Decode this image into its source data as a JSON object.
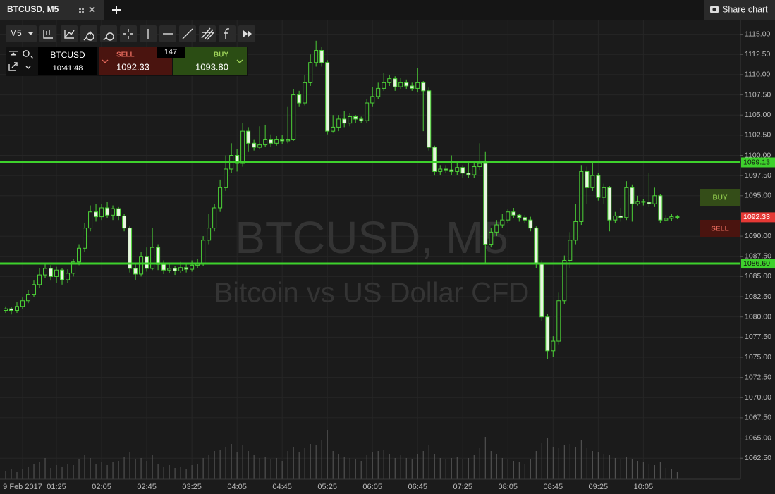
{
  "tab": {
    "title": "BTCUSD, M5",
    "share": "Share chart"
  },
  "toolbar": {
    "timeframe": "M5"
  },
  "ticker": {
    "symbol": "BTCUSD",
    "time": "10:41:48",
    "sell_label": "SELL",
    "sell": "1092.33",
    "spread": 147,
    "buy_label": "BUY",
    "buy": "1093.80"
  },
  "chart_data": {
    "type": "candlestick",
    "watermark_title": "BTCUSD, M5",
    "watermark_subtitle": "Bitcoin vs US Dollar CFD",
    "colors": {
      "up": "#1b1b1b",
      "down": "#e8f5e0",
      "wick": "#4cd137"
    },
    "xlim": [
      35,
      691
    ],
    "ylim": [
      1059.9,
      1116.8
    ],
    "grid": true,
    "xticks": [
      {
        "value": 55,
        "label": "9 Feb 2017"
      },
      {
        "value": 85,
        "label": "01:25"
      },
      {
        "value": 125,
        "label": "02:05"
      },
      {
        "value": 165,
        "label": "02:45"
      },
      {
        "value": 205,
        "label": "03:25"
      },
      {
        "value": 245,
        "label": "04:05"
      },
      {
        "value": 285,
        "label": "04:45"
      },
      {
        "value": 325,
        "label": "05:25"
      },
      {
        "value": 365,
        "label": "06:05"
      },
      {
        "value": 405,
        "label": "06:45"
      },
      {
        "value": 445,
        "label": "07:25"
      },
      {
        "value": 485,
        "label": "08:05"
      },
      {
        "value": 525,
        "label": "08:45"
      },
      {
        "value": 565,
        "label": "09:25"
      },
      {
        "value": 605,
        "label": "10:05"
      }
    ],
    "yticks": [
      {
        "value": 1115,
        "label": "1115.00"
      },
      {
        "value": 1112.5,
        "label": "1112.50"
      },
      {
        "value": 1110,
        "label": "1110.00"
      },
      {
        "value": 1107.5,
        "label": "1107.50"
      },
      {
        "value": 1105,
        "label": "1105.00"
      },
      {
        "value": 1102.5,
        "label": "1102.50"
      },
      {
        "value": 1100,
        "label": "1100.00"
      },
      {
        "value": 1097.5,
        "label": "1097.50"
      },
      {
        "value": 1095,
        "label": "1095.00"
      },
      {
        "value": 1092.5,
        "label": "1092.50"
      },
      {
        "value": 1090,
        "label": "1090.00"
      },
      {
        "value": 1087.5,
        "label": "1087.50"
      },
      {
        "value": 1085,
        "label": "1085.00"
      },
      {
        "value": 1082.5,
        "label": "1082.50"
      },
      {
        "value": 1080,
        "label": "1080.00"
      },
      {
        "value": 1077.5,
        "label": "1077.50"
      },
      {
        "value": 1075,
        "label": "1075.00"
      },
      {
        "value": 1072.5,
        "label": "1072.50"
      },
      {
        "value": 1070,
        "label": "1070.00"
      },
      {
        "value": 1067.5,
        "label": "1067.50"
      },
      {
        "value": 1065,
        "label": "1065.00"
      },
      {
        "value": 1062.5,
        "label": "1062.50"
      }
    ],
    "levels": [
      {
        "value": 1099.13,
        "label": "1099.13"
      },
      {
        "value": 1086.6,
        "label": "1086.60"
      }
    ],
    "level_color": "#3ed12c",
    "last": {
      "value": 1092.33,
      "label": "1092.33",
      "color": "#e53935"
    },
    "buttons": {
      "buy": "BUY",
      "sell": "SELL"
    },
    "x": [
      40,
      45,
      50,
      55,
      60,
      65,
      70,
      75,
      80,
      85,
      90,
      95,
      100,
      105,
      110,
      115,
      120,
      125,
      130,
      135,
      140,
      145,
      150,
      155,
      160,
      165,
      170,
      175,
      180,
      185,
      190,
      195,
      200,
      205,
      210,
      215,
      220,
      225,
      230,
      235,
      240,
      245,
      250,
      255,
      260,
      265,
      270,
      275,
      280,
      285,
      290,
      295,
      300,
      305,
      310,
      315,
      320,
      325,
      330,
      335,
      340,
      345,
      350,
      355,
      360,
      365,
      370,
      375,
      380,
      385,
      390,
      395,
      400,
      405,
      410,
      415,
      420,
      425,
      430,
      435,
      440,
      445,
      450,
      455,
      460,
      465,
      470,
      475,
      480,
      485,
      490,
      495,
      500,
      505,
      510,
      515,
      520,
      525,
      530,
      535,
      540,
      545,
      550,
      555,
      560,
      565,
      570,
      575,
      580,
      585,
      590,
      595,
      600,
      605,
      610,
      615,
      620,
      625,
      630,
      635
    ],
    "open": [
      1080.8,
      1081.0,
      1080.8,
      1081.3,
      1082.0,
      1082.8,
      1084.0,
      1085.2,
      1086.0,
      1085.0,
      1085.8,
      1084.6,
      1085.4,
      1086.8,
      1088.5,
      1091.0,
      1093.0,
      1092.4,
      1093.5,
      1092.6,
      1093.4,
      1092.5,
      1091.0,
      1086.0,
      1085.3,
      1087.5,
      1086.0,
      1088.6,
      1086.5,
      1085.8,
      1086.0,
      1085.7,
      1086.1,
      1085.9,
      1086.4,
      1086.6,
      1089.5,
      1091.0,
      1093.5,
      1096.0,
      1098.3,
      1100.0,
      1099.0,
      1103.0,
      1101.5,
      1101.0,
      1101.3,
      1102.0,
      1101.5,
      1102.0,
      1101.8,
      1102.0,
      1107.5,
      1106.5,
      1109.0,
      1111.5,
      1113.0,
      1111.5,
      1103.0,
      1103.5,
      1104.5,
      1104.0,
      1104.8,
      1104.5,
      1104.3,
      1106.5,
      1107.3,
      1108.3,
      1109.0,
      1109.5,
      1108.5,
      1109.0,
      1108.6,
      1108.3,
      1109.0,
      1108.0,
      1101.0,
      1098.0,
      1098.3,
      1098.2,
      1098.0,
      1098.5,
      1097.8,
      1097.6,
      1098.6,
      1099.0,
      1089.0,
      1090.5,
      1091.4,
      1092.0,
      1093.0,
      1092.6,
      1092.3,
      1092.0,
      1091.0,
      1086.6,
      1080.0,
      1075.8,
      1077.0,
      1082.0,
      1087.0,
      1089.5,
      1091.8,
      1098.0,
      1096.0,
      1097.5,
      1094.8,
      1096.0,
      1092.0,
      1092.5,
      1092.3,
      1096.0,
      1094.0,
      1094.3,
      1094.2,
      1094.0,
      1095.0,
      1092.0,
      1092.2,
      1092.4
    ],
    "high": [
      1081.3,
      1081.2,
      1081.8,
      1082.4,
      1083.3,
      1084.5,
      1086.0,
      1086.6,
      1086.4,
      1086.2,
      1086.0,
      1085.9,
      1087.2,
      1089.0,
      1091.6,
      1093.8,
      1094.0,
      1094.0,
      1094.2,
      1093.8,
      1093.6,
      1092.8,
      1091.2,
      1086.5,
      1088.0,
      1088.6,
      1091.0,
      1089.0,
      1087.0,
      1086.5,
      1086.3,
      1086.8,
      1086.5,
      1087.0,
      1087.2,
      1090.0,
      1092.8,
      1094.0,
      1097.0,
      1100.0,
      1101.5,
      1100.8,
      1104.0,
      1103.5,
      1102.0,
      1103.6,
      1103.8,
      1102.6,
      1102.4,
      1102.5,
      1106.0,
      1108.2,
      1108.0,
      1110.0,
      1112.5,
      1114.2,
      1113.4,
      1111.8,
      1105.0,
      1105.0,
      1105.5,
      1105.2,
      1105.0,
      1104.8,
      1107.0,
      1108.5,
      1109.0,
      1110.2,
      1110.0,
      1109.8,
      1109.6,
      1109.4,
      1109.0,
      1110.8,
      1109.2,
      1108.4,
      1101.2,
      1098.8,
      1098.8,
      1100.0,
      1099.0,
      1098.8,
      1099.0,
      1099.0,
      1101.5,
      1100.5,
      1091.0,
      1092.0,
      1092.8,
      1093.4,
      1093.5,
      1092.8,
      1092.6,
      1092.4,
      1091.2,
      1087.0,
      1080.4,
      1077.6,
      1083.0,
      1087.6,
      1090.5,
      1094.0,
      1098.8,
      1098.6,
      1099.2,
      1097.8,
      1096.5,
      1096.2,
      1093.0,
      1093.5,
      1096.8,
      1096.4,
      1095.0,
      1094.6,
      1097.8,
      1096.0,
      1095.2,
      1092.6,
      1092.8,
      1092.6
    ],
    "low": [
      1080.5,
      1080.3,
      1080.5,
      1081.0,
      1081.7,
      1082.5,
      1083.6,
      1084.8,
      1084.5,
      1084.2,
      1084.0,
      1084.2,
      1085.0,
      1086.4,
      1088.0,
      1090.6,
      1091.8,
      1092.0,
      1092.2,
      1092.0,
      1092.0,
      1090.6,
      1085.5,
      1084.6,
      1085.0,
      1085.6,
      1085.8,
      1085.8,
      1085.3,
      1085.4,
      1085.2,
      1085.4,
      1085.5,
      1085.6,
      1086.0,
      1086.3,
      1089.0,
      1090.6,
      1093.0,
      1095.6,
      1097.8,
      1098.0,
      1098.6,
      1100.5,
      1100.6,
      1100.8,
      1101.0,
      1101.0,
      1101.2,
      1101.4,
      1101.5,
      1101.8,
      1106.0,
      1106.2,
      1108.6,
      1111.0,
      1111.0,
      1102.6,
      1102.8,
      1103.0,
      1103.5,
      1103.6,
      1104.0,
      1104.0,
      1104.0,
      1106.0,
      1107.0,
      1108.0,
      1108.6,
      1108.0,
      1108.2,
      1108.2,
      1108.0,
      1107.8,
      1103.0,
      1100.6,
      1097.5,
      1097.6,
      1097.8,
      1097.6,
      1097.6,
      1097.2,
      1097.2,
      1097.2,
      1098.2,
      1086.6,
      1088.6,
      1090.0,
      1091.0,
      1091.6,
      1092.2,
      1091.8,
      1091.6,
      1090.6,
      1086.0,
      1079.5,
      1074.8,
      1075.0,
      1076.6,
      1081.6,
      1086.0,
      1089.0,
      1091.4,
      1094.0,
      1095.6,
      1094.4,
      1094.0,
      1090.6,
      1091.6,
      1091.8,
      1092.0,
      1091.8,
      1093.8,
      1093.8,
      1093.6,
      1093.6,
      1091.6,
      1091.8,
      1091.9,
      1092.1
    ],
    "close": [
      1081.0,
      1080.8,
      1081.3,
      1082.0,
      1082.8,
      1084.0,
      1085.2,
      1086.0,
      1085.0,
      1085.8,
      1084.6,
      1085.4,
      1086.8,
      1088.5,
      1091.0,
      1093.0,
      1092.4,
      1093.5,
      1092.6,
      1093.4,
      1092.5,
      1091.0,
      1086.0,
      1085.3,
      1087.5,
      1086.0,
      1088.6,
      1086.5,
      1085.8,
      1086.0,
      1085.7,
      1086.1,
      1085.9,
      1086.4,
      1086.6,
      1089.5,
      1091.0,
      1093.5,
      1096.0,
      1098.3,
      1100.0,
      1099.0,
      1103.0,
      1101.5,
      1101.0,
      1101.3,
      1102.0,
      1101.5,
      1102.0,
      1101.8,
      1102.0,
      1107.5,
      1106.5,
      1109.0,
      1111.5,
      1113.0,
      1111.5,
      1103.0,
      1103.5,
      1104.5,
      1104.0,
      1104.8,
      1104.5,
      1104.3,
      1106.5,
      1107.3,
      1108.3,
      1109.0,
      1109.5,
      1108.5,
      1109.0,
      1108.6,
      1108.3,
      1109.0,
      1108.0,
      1101.0,
      1098.0,
      1098.3,
      1098.2,
      1098.0,
      1098.5,
      1097.8,
      1097.6,
      1098.6,
      1099.0,
      1089.0,
      1090.5,
      1091.4,
      1092.0,
      1093.0,
      1092.6,
      1092.3,
      1092.0,
      1091.0,
      1086.6,
      1080.0,
      1075.8,
      1077.0,
      1082.0,
      1087.0,
      1089.5,
      1091.8,
      1098.0,
      1096.0,
      1097.5,
      1094.8,
      1096.0,
      1092.0,
      1092.5,
      1092.3,
      1096.0,
      1094.0,
      1094.3,
      1094.2,
      1094.0,
      1095.0,
      1092.0,
      1092.2,
      1092.4,
      1092.33
    ],
    "volume": [
      12,
      15,
      10,
      14,
      18,
      22,
      25,
      30,
      16,
      20,
      18,
      22,
      20,
      28,
      35,
      30,
      22,
      25,
      20,
      24,
      26,
      32,
      38,
      28,
      30,
      26,
      34,
      22,
      18,
      20,
      16,
      18,
      15,
      20,
      22,
      30,
      34,
      40,
      42,
      45,
      50,
      38,
      48,
      40,
      35,
      30,
      32,
      28,
      30,
      26,
      40,
      46,
      38,
      44,
      50,
      48,
      55,
      70,
      40,
      36,
      32,
      30,
      28,
      26,
      34,
      38,
      40,
      42,
      36,
      30,
      34,
      30,
      28,
      36,
      40,
      48,
      36,
      30,
      28,
      30,
      32,
      28,
      30,
      34,
      44,
      60,
      40,
      36,
      30,
      28,
      26,
      24,
      22,
      28,
      40,
      52,
      58,
      46,
      44,
      48,
      50,
      46,
      56,
      44,
      40,
      38,
      36,
      34,
      30,
      28,
      32,
      28,
      26,
      24,
      22,
      20,
      24,
      16,
      14,
      10
    ]
  }
}
